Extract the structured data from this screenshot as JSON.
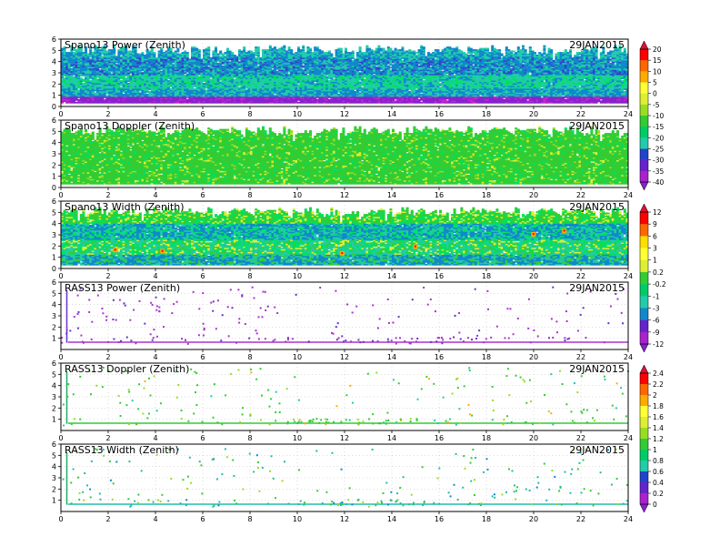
{
  "date_label": "29JAN2015",
  "panels": [
    {
      "title": "Spano13 Power (Zenith)",
      "kind": "dense",
      "profile": "power",
      "colorbar": 0
    },
    {
      "title": "Spano13 Doppler (Zenith)",
      "kind": "dense",
      "profile": "doppler",
      "colorbar": 0
    },
    {
      "title": "Spano13 Width (Zenith)",
      "kind": "dense",
      "profile": "width",
      "colorbar": 1
    },
    {
      "title": "RASS13 Power (Zenith)",
      "kind": "sparse",
      "profile": "rasspower",
      "colorbar": 1
    },
    {
      "title": "RASS13 Doppler (Zenith)",
      "kind": "sparse",
      "profile": "rassdoppler",
      "colorbar": 2
    },
    {
      "title": "RASS13 Width (Zenith)",
      "kind": "sparse",
      "profile": "rasswidth",
      "colorbar": 2
    }
  ],
  "colorbars": [
    {
      "ticks": [
        "20",
        "15",
        "10",
        "5",
        "0",
        "-5",
        "-10",
        "-15",
        "-20",
        "-25",
        "-30",
        "-35",
        "-40"
      ]
    },
    {
      "ticks": [
        "12",
        "9",
        "6",
        "3",
        "1",
        "0.2",
        "-0.2",
        "-1",
        "-3",
        "-6",
        "-9",
        "-12"
      ]
    },
    {
      "ticks": [
        "2.4",
        "2.2",
        "2",
        "1.8",
        "1.6",
        "1.4",
        "1.2",
        "1",
        "0.8",
        "0.6",
        "0.4",
        "0.2",
        "0"
      ]
    }
  ],
  "palette": [
    "#ff0000",
    "#ff6600",
    "#ffaa00",
    "#ffdd00",
    "#ffff66",
    "#ddee33",
    "#99dd22",
    "#33cc33",
    "#00e060",
    "#22ccaa",
    "#1188cc",
    "#3344cc",
    "#8822cc",
    "#cc22cc"
  ],
  "chart_data": [
    {
      "type": "heatmap",
      "title": "Spano13 Power (Zenith)",
      "annotation": "29JAN2015",
      "x_ticks": [
        "0",
        "2",
        "4",
        "6",
        "8",
        "10",
        "12",
        "14",
        "16",
        "18",
        "20",
        "22",
        "24"
      ],
      "y_ticks": [
        "0",
        "1",
        "2",
        "3",
        "4",
        "5",
        "6"
      ],
      "xlim": [
        0,
        24
      ],
      "ylim": [
        0,
        6
      ],
      "colorbar_ticks": [
        "20",
        "15",
        "10",
        "5",
        "0",
        "-5",
        "-10",
        "-15",
        "-20",
        "-25",
        "-30",
        "-35",
        "-40"
      ]
    },
    {
      "type": "heatmap",
      "title": "Spano13 Doppler (Zenith)",
      "annotation": "29JAN2015",
      "x_ticks": [
        "0",
        "2",
        "4",
        "6",
        "8",
        "10",
        "12",
        "14",
        "16",
        "18",
        "20",
        "22",
        "24"
      ],
      "y_ticks": [
        "0",
        "1",
        "2",
        "3",
        "4",
        "5",
        "6"
      ],
      "xlim": [
        0,
        24
      ],
      "ylim": [
        0,
        6
      ],
      "colorbar_ticks": [
        "20",
        "15",
        "10",
        "5",
        "0",
        "-5",
        "-10",
        "-15",
        "-20",
        "-25",
        "-30",
        "-35",
        "-40"
      ]
    },
    {
      "type": "heatmap",
      "title": "Spano13 Width (Zenith)",
      "annotation": "29JAN2015",
      "x_ticks": [
        "0",
        "2",
        "4",
        "6",
        "8",
        "10",
        "12",
        "14",
        "16",
        "18",
        "20",
        "22",
        "24"
      ],
      "y_ticks": [
        "0",
        "1",
        "2",
        "3",
        "4",
        "5",
        "6"
      ],
      "xlim": [
        0,
        24
      ],
      "ylim": [
        0,
        6
      ],
      "colorbar_ticks": [
        "12",
        "9",
        "6",
        "3",
        "1",
        "0.2",
        "-0.2",
        "-1",
        "-3",
        "-6",
        "-9",
        "-12"
      ]
    },
    {
      "type": "scatter",
      "title": "RASS13 Power (Zenith)",
      "annotation": "29JAN2015",
      "x_ticks": [
        "0",
        "2",
        "4",
        "6",
        "8",
        "10",
        "12",
        "14",
        "16",
        "18",
        "20",
        "22",
        "24"
      ],
      "y_ticks": [
        "1",
        "2",
        "3",
        "4",
        "5",
        "6"
      ],
      "xlim": [
        0,
        24
      ],
      "ylim": [
        0,
        6
      ],
      "colorbar_ticks": [
        "12",
        "9",
        "6",
        "3",
        "1",
        "0.2",
        "-0.2",
        "-1",
        "-3",
        "-6",
        "-9",
        "-12"
      ]
    },
    {
      "type": "scatter",
      "title": "RASS13 Doppler (Zenith)",
      "annotation": "29JAN2015",
      "x_ticks": [
        "0",
        "2",
        "4",
        "6",
        "8",
        "10",
        "12",
        "14",
        "16",
        "18",
        "20",
        "22",
        "24"
      ],
      "y_ticks": [
        "1",
        "2",
        "3",
        "4",
        "5",
        "6"
      ],
      "xlim": [
        0,
        24
      ],
      "ylim": [
        0,
        6
      ],
      "colorbar_ticks": [
        "2.4",
        "2.2",
        "2",
        "1.8",
        "1.6",
        "1.4",
        "1.2",
        "1",
        "0.8",
        "0.6",
        "0.4",
        "0.2",
        "0"
      ]
    },
    {
      "type": "scatter",
      "title": "RASS13 Width (Zenith)",
      "annotation": "29JAN2015",
      "x_ticks": [
        "0",
        "2",
        "4",
        "6",
        "8",
        "10",
        "12",
        "14",
        "16",
        "18",
        "20",
        "22",
        "24"
      ],
      "y_ticks": [
        "1",
        "2",
        "3",
        "4",
        "5",
        "6"
      ],
      "xlim": [
        0,
        24
      ],
      "ylim": [
        0,
        6
      ],
      "colorbar_ticks": [
        "2.4",
        "2.2",
        "2",
        "1.8",
        "1.6",
        "1.4",
        "1.2",
        "1",
        "0.8",
        "0.6",
        "0.4",
        "0.2",
        "0"
      ]
    }
  ]
}
